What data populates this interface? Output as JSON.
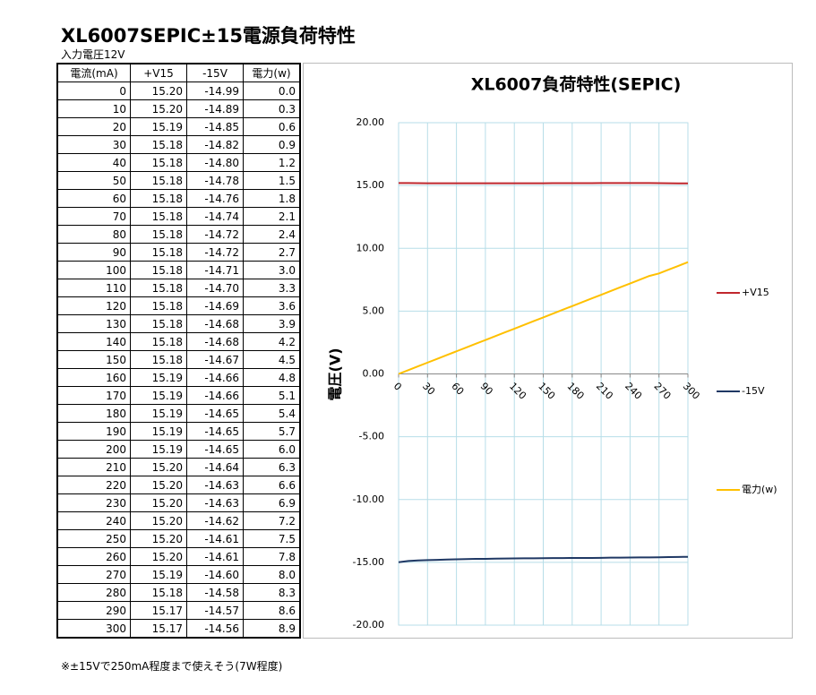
{
  "title": "XL6007SEPIC±15電源負荷特性",
  "subtitle": "入力電圧12V",
  "table": {
    "header": [
      "電流(mA)",
      "+V15",
      "-15V",
      "電力(w)"
    ],
    "rows": [
      [
        "0",
        "15.20",
        "-14.99",
        "0.0"
      ],
      [
        "10",
        "15.20",
        "-14.89",
        "0.3"
      ],
      [
        "20",
        "15.19",
        "-14.85",
        "0.6"
      ],
      [
        "30",
        "15.18",
        "-14.82",
        "0.9"
      ],
      [
        "40",
        "15.18",
        "-14.80",
        "1.2"
      ],
      [
        "50",
        "15.18",
        "-14.78",
        "1.5"
      ],
      [
        "60",
        "15.18",
        "-14.76",
        "1.8"
      ],
      [
        "70",
        "15.18",
        "-14.74",
        "2.1"
      ],
      [
        "80",
        "15.18",
        "-14.72",
        "2.4"
      ],
      [
        "90",
        "15.18",
        "-14.72",
        "2.7"
      ],
      [
        "100",
        "15.18",
        "-14.71",
        "3.0"
      ],
      [
        "110",
        "15.18",
        "-14.70",
        "3.3"
      ],
      [
        "120",
        "15.18",
        "-14.69",
        "3.6"
      ],
      [
        "130",
        "15.18",
        "-14.68",
        "3.9"
      ],
      [
        "140",
        "15.18",
        "-14.68",
        "4.2"
      ],
      [
        "150",
        "15.18",
        "-14.67",
        "4.5"
      ],
      [
        "160",
        "15.19",
        "-14.66",
        "4.8"
      ],
      [
        "170",
        "15.19",
        "-14.66",
        "5.1"
      ],
      [
        "180",
        "15.19",
        "-14.65",
        "5.4"
      ],
      [
        "190",
        "15.19",
        "-14.65",
        "5.7"
      ],
      [
        "200",
        "15.19",
        "-14.65",
        "6.0"
      ],
      [
        "210",
        "15.20",
        "-14.64",
        "6.3"
      ],
      [
        "220",
        "15.20",
        "-14.63",
        "6.6"
      ],
      [
        "230",
        "15.20",
        "-14.63",
        "6.9"
      ],
      [
        "240",
        "15.20",
        "-14.62",
        "7.2"
      ],
      [
        "250",
        "15.20",
        "-14.61",
        "7.5"
      ],
      [
        "260",
        "15.20",
        "-14.61",
        "7.8"
      ],
      [
        "270",
        "15.19",
        "-14.60",
        "8.0"
      ],
      [
        "280",
        "15.18",
        "-14.58",
        "8.3"
      ],
      [
        "290",
        "15.17",
        "-14.57",
        "8.6"
      ],
      [
        "300",
        "15.17",
        "-14.56",
        "8.9"
      ]
    ]
  },
  "chart_data": {
    "type": "line",
    "title": "XL6007負荷特性(SEPIC)",
    "y_label": "電圧(V)",
    "x": [
      0,
      10,
      20,
      30,
      40,
      50,
      60,
      70,
      80,
      90,
      100,
      110,
      120,
      130,
      140,
      150,
      160,
      170,
      180,
      190,
      200,
      210,
      220,
      230,
      240,
      250,
      260,
      270,
      280,
      290,
      300
    ],
    "series": [
      {
        "name": "+V15",
        "color": "#c0272d",
        "values": [
          15.2,
          15.2,
          15.19,
          15.18,
          15.18,
          15.18,
          15.18,
          15.18,
          15.18,
          15.18,
          15.18,
          15.18,
          15.18,
          15.18,
          15.18,
          15.18,
          15.19,
          15.19,
          15.19,
          15.19,
          15.19,
          15.2,
          15.2,
          15.2,
          15.2,
          15.2,
          15.2,
          15.19,
          15.18,
          15.17,
          15.17
        ]
      },
      {
        "name": "-15V",
        "color": "#1f3864",
        "values": [
          -14.99,
          -14.89,
          -14.85,
          -14.82,
          -14.8,
          -14.78,
          -14.76,
          -14.74,
          -14.72,
          -14.72,
          -14.71,
          -14.7,
          -14.69,
          -14.68,
          -14.68,
          -14.67,
          -14.66,
          -14.66,
          -14.65,
          -14.65,
          -14.65,
          -14.64,
          -14.63,
          -14.63,
          -14.62,
          -14.61,
          -14.61,
          -14.6,
          -14.58,
          -14.57,
          -14.56
        ]
      },
      {
        "name": "電力(w)",
        "color": "#ffc000",
        "values": [
          0,
          0.3,
          0.6,
          0.9,
          1.2,
          1.5,
          1.8,
          2.1,
          2.4,
          2.7,
          3.0,
          3.3,
          3.6,
          3.9,
          4.2,
          4.5,
          4.8,
          5.1,
          5.4,
          5.7,
          6.0,
          6.3,
          6.6,
          6.9,
          7.2,
          7.5,
          7.8,
          8.0,
          8.3,
          8.6,
          8.9
        ]
      }
    ],
    "xlim": [
      0,
      300
    ],
    "xticks": [
      0,
      30,
      60,
      90,
      120,
      150,
      180,
      210,
      240,
      270,
      300
    ],
    "ylim": [
      -20,
      20
    ],
    "yticks": [
      {
        "value": -20,
        "label": "-20.00"
      },
      {
        "value": -15,
        "label": "-15.00"
      },
      {
        "value": -10,
        "label": "-10.00"
      },
      {
        "value": -5,
        "label": "-5.00"
      },
      {
        "value": 0,
        "label": "0.00"
      },
      {
        "value": 5,
        "label": "5.00"
      },
      {
        "value": 10,
        "label": "10.00"
      },
      {
        "value": 15,
        "label": "15.00"
      },
      {
        "value": 20,
        "label": "20.00"
      }
    ],
    "grid": true,
    "legend": "right"
  },
  "note": "※±15Vで250mA程度まで使えそう(7W程度)"
}
